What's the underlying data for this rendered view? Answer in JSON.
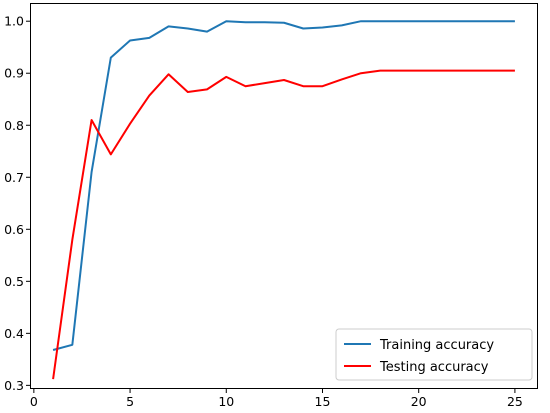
{
  "chart_data": {
    "type": "line",
    "title": "",
    "xlabel": "",
    "ylabel": "",
    "xlim": [
      -0.2,
      26.2
    ],
    "ylim": [
      0.293,
      1.035
    ],
    "xticks": [
      0,
      5,
      10,
      15,
      20,
      25
    ],
    "yticks": [
      0.3,
      0.4,
      0.5,
      0.6,
      0.7,
      0.8,
      0.9,
      1.0
    ],
    "grid": false,
    "legend_position": "lower-right",
    "x": [
      1,
      2,
      3,
      4,
      5,
      6,
      7,
      8,
      9,
      10,
      11,
      12,
      13,
      14,
      15,
      16,
      17,
      18,
      19,
      20,
      21,
      22,
      23,
      24,
      25
    ],
    "series": [
      {
        "name": "Training accuracy",
        "color": "#1f77b4",
        "values": [
          0.368,
          0.378,
          0.71,
          0.93,
          0.963,
          0.968,
          0.99,
          0.986,
          0.98,
          1.0,
          0.998,
          0.998,
          0.997,
          0.986,
          0.988,
          0.992,
          1.0,
          1.0,
          1.0,
          1.0,
          1.0,
          1.0,
          1.0,
          1.0,
          1.0
        ]
      },
      {
        "name": "Testing accuracy",
        "color": "#ff0000",
        "values": [
          0.312,
          0.58,
          0.81,
          0.744,
          0.803,
          0.857,
          0.898,
          0.864,
          0.869,
          0.893,
          0.875,
          0.881,
          0.887,
          0.875,
          0.875,
          0.888,
          0.9,
          0.905,
          0.905,
          0.905,
          0.905,
          0.905,
          0.905,
          0.905,
          0.905
        ]
      }
    ]
  }
}
